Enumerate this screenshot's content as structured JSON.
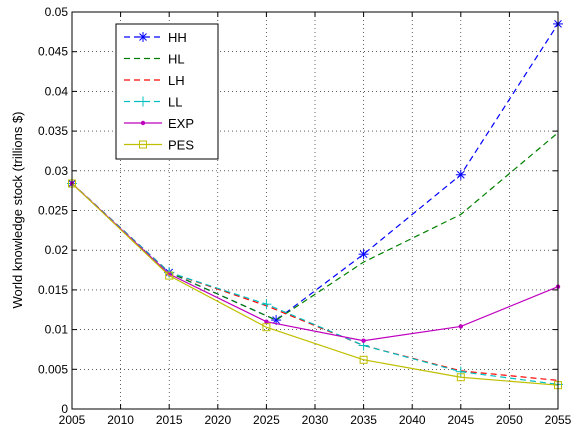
{
  "chart_data": {
    "type": "line",
    "title": "",
    "xlabel": "",
    "ylabel": "World knowledge stock (trillions $)",
    "xlim": [
      2005,
      2055
    ],
    "ylim": [
      0,
      0.05
    ],
    "x_ticks": [
      2005,
      2010,
      2015,
      2020,
      2025,
      2030,
      2035,
      2040,
      2045,
      2050,
      2055
    ],
    "y_ticks": [
      0,
      0.005,
      0.01,
      0.015,
      0.02,
      0.025,
      0.03,
      0.035,
      0.04,
      0.045,
      0.05
    ],
    "x_tick_labels": [
      "2005",
      "2010",
      "2015",
      "2020",
      "2025",
      "2030",
      "2035",
      "2040",
      "2045",
      "2050",
      "2055"
    ],
    "y_tick_labels": [
      "0",
      "0.005",
      "0.01",
      "0.015",
      "0.02",
      "0.025",
      "0.03",
      "0.035",
      "0.04",
      "0.045",
      "0.05"
    ],
    "grid": true,
    "legend_position": "top-left",
    "series": [
      {
        "name": "HH",
        "color": "#0000ff",
        "dash": "dashed",
        "marker": "star",
        "x": [
          2005,
          2015,
          2026,
          2035,
          2045,
          2055
        ],
        "y": [
          0.0284,
          0.0172,
          0.0112,
          0.0195,
          0.0295,
          0.0485
        ]
      },
      {
        "name": "HL",
        "color": "#008000",
        "dash": "dashed",
        "marker": "none",
        "x": [
          2005,
          2015,
          2026,
          2035,
          2045,
          2055
        ],
        "y": [
          0.0284,
          0.0172,
          0.0112,
          0.0185,
          0.0245,
          0.0348
        ]
      },
      {
        "name": "LH",
        "color": "#ff0000",
        "dash": "dashed",
        "marker": "none",
        "x": [
          2005,
          2015,
          2025,
          2035,
          2045,
          2055
        ],
        "y": [
          0.0284,
          0.0172,
          0.013,
          0.008,
          0.0048,
          0.0036
        ]
      },
      {
        "name": "LL",
        "color": "#00bfbf",
        "dash": "dashed",
        "marker": "plus",
        "x": [
          2005,
          2015,
          2025,
          2035,
          2045,
          2055
        ],
        "y": [
          0.0284,
          0.0172,
          0.0132,
          0.008,
          0.0047,
          0.0031
        ]
      },
      {
        "name": "EXP",
        "color": "#bf00bf",
        "dash": "solid",
        "marker": "dot",
        "x": [
          2005,
          2015,
          2025,
          2035,
          2045,
          2055
        ],
        "y": [
          0.0284,
          0.017,
          0.011,
          0.0086,
          0.0104,
          0.0154
        ]
      },
      {
        "name": "PES",
        "color": "#bfbf00",
        "dash": "solid",
        "marker": "square",
        "x": [
          2005,
          2015,
          2025,
          2035,
          2045,
          2055
        ],
        "y": [
          0.0284,
          0.0168,
          0.0103,
          0.0062,
          0.004,
          0.003
        ]
      }
    ]
  }
}
